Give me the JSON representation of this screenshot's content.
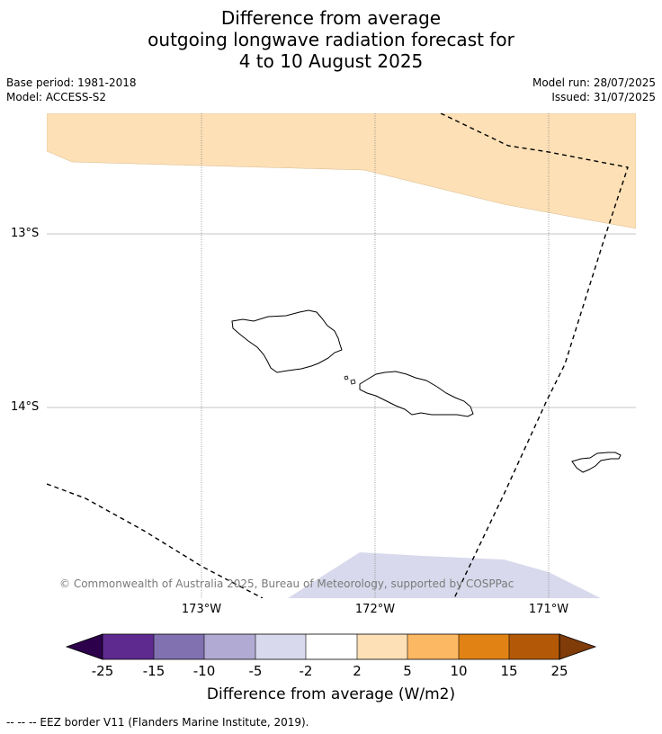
{
  "title": {
    "line1": "Difference from average",
    "line2": "outgoing longwave radiation forecast for",
    "line3": "4 to 10 August 2025"
  },
  "meta": {
    "base_period": "Base period: 1981-2018",
    "model": "Model: ACCESS-S2",
    "model_run": "Model run: 28/07/2025",
    "issued": "Issued: 31/07/2025"
  },
  "map": {
    "latitude_labels": [
      "13°S",
      "14°S"
    ],
    "longitude_labels": [
      "173°W",
      "172°W",
      "171°W"
    ],
    "copyright": "© Commonwealth of Australia 2025, Bureau of Meteorology, supported by COSPPac",
    "shaded_regions": [
      {
        "category": "2 to 5",
        "location": "northern part of map"
      },
      {
        "category": "-5 to -2",
        "location": "southern edge near 172°W–171°W"
      }
    ]
  },
  "colorbar": {
    "ticks": [
      "-25",
      "-15",
      "-10",
      "-5",
      "-2",
      "2",
      "5",
      "10",
      "15",
      "25"
    ],
    "colors": [
      "#2d004b",
      "#5e2a8f",
      "#8171b0",
      "#b1aad2",
      "#d8d9ec",
      "#ffffff",
      "#fde0b6",
      "#fdb863",
      "#e08214",
      "#b35806",
      "#7f3b08"
    ],
    "label": "Difference from average (W/m2)"
  },
  "footer": "--  --  -- EEZ border V11 (Flanders Marine Institute, 2019)."
}
